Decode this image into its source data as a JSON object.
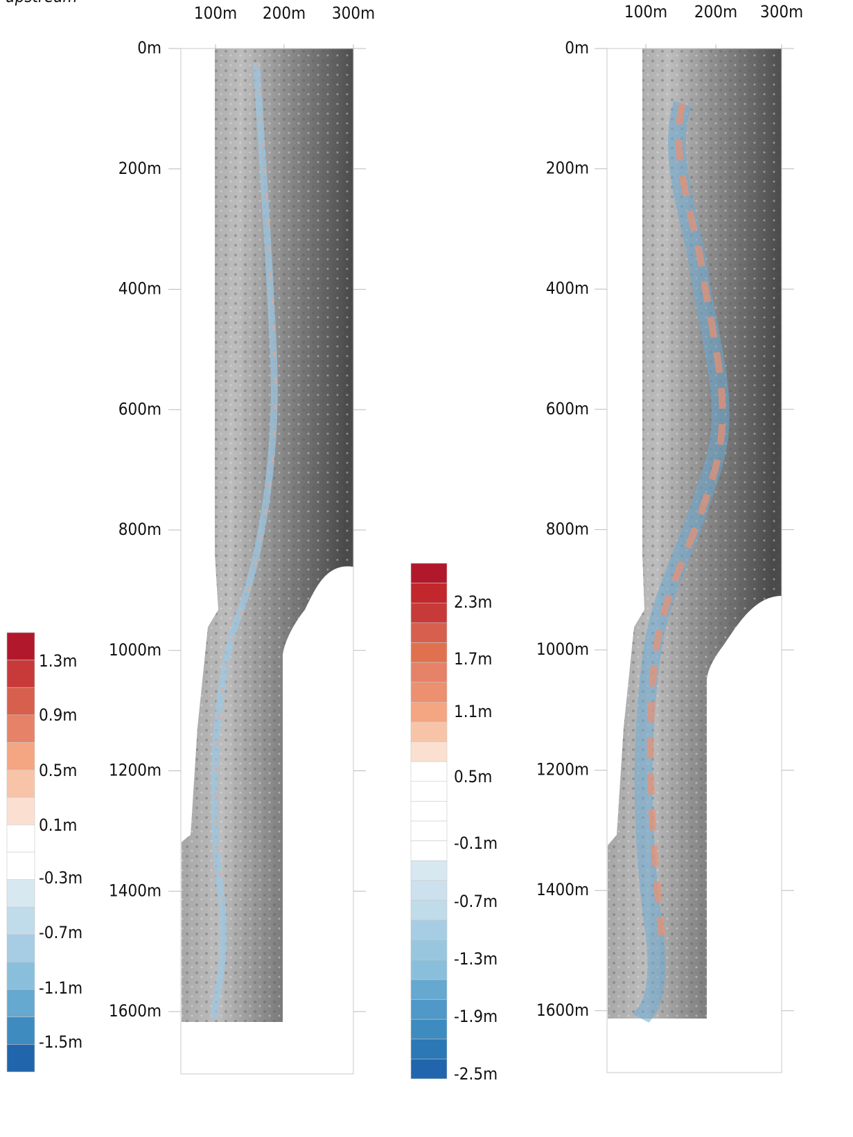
{
  "label": "upstream",
  "panels": [
    {
      "x_axis": [
        "100m",
        "200m",
        "300m"
      ],
      "y_axis": [
        "0m",
        "200m",
        "400m",
        "600m",
        "800m",
        "1000m",
        "1200m",
        "1400m",
        "1600m"
      ],
      "legend": {
        "labels": [
          "1.3m",
          "0.9m",
          "0.5m",
          "0.1m",
          "-0.3m",
          "-0.7m",
          "-1.1m",
          "-1.5m"
        ],
        "colors": [
          "#b2182b",
          "#c83a3a",
          "#d6604d",
          "#e58267",
          "#f4a582",
          "#f8c4a8",
          "#fbe0d2",
          "#ffffff",
          "#ffffff",
          "#d8e8f1",
          "#c0dbea",
          "#a6cde3",
          "#8abfdc",
          "#65a8d0",
          "#3e8bc0",
          "#2166ac"
        ]
      }
    },
    {
      "x_axis": [
        "100m",
        "200m",
        "300m"
      ],
      "y_axis": [
        "0m",
        "200m",
        "400m",
        "600m",
        "800m",
        "1000m",
        "1200m",
        "1400m",
        "1600m"
      ],
      "legend": {
        "labels": [
          "2.3m",
          "1.7m",
          "1.1m",
          "0.5m",
          "-0.1m",
          "-0.7m",
          "-1.3m",
          "-1.9m",
          "-2.5m"
        ],
        "colors": [
          "#b2182b",
          "#c1272d",
          "#c83a3a",
          "#d6604d",
          "#e0714f",
          "#e58267",
          "#ec9070",
          "#f4a582",
          "#f8c4a8",
          "#fbe0d2",
          "#ffffff",
          "#ffffff",
          "#ffffff",
          "#ffffff",
          "#ffffff",
          "#d8e8f1",
          "#cce0ee",
          "#c0dbea",
          "#a6cde3",
          "#98c6df",
          "#8abfdc",
          "#65a8d0",
          "#4f98c7",
          "#3e8bc0",
          "#2b78b5",
          "#2166ac"
        ]
      }
    }
  ]
}
